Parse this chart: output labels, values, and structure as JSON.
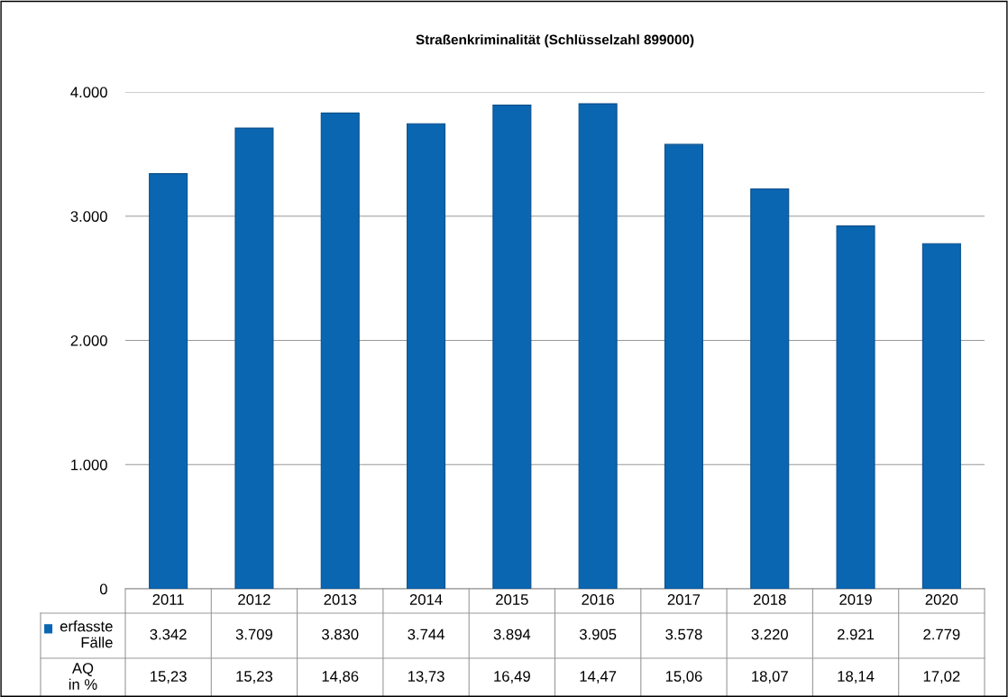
{
  "chart_data": {
    "type": "bar",
    "title": "Straßenkriminalität (Schlüsselzahl 899000)",
    "categories": [
      "2011",
      "2012",
      "2013",
      "2014",
      "2015",
      "2016",
      "2017",
      "2018",
      "2019",
      "2020"
    ],
    "series": [
      {
        "name": "erfasste\nFälle",
        "color": "#0b66b2",
        "values": [
          3342,
          3709,
          3830,
          3744,
          3894,
          3905,
          3578,
          3220,
          2921,
          2779
        ]
      }
    ],
    "value_labels": [
      "3.342",
      "3.709",
      "3.830",
      "3.744",
      "3.894",
      "3.905",
      "3.578",
      "3.220",
      "2.921",
      "2.779"
    ],
    "ylim": [
      0,
      4000
    ],
    "yticks": [
      {
        "value": 0,
        "label": "0"
      },
      {
        "value": 1000,
        "label": "1.000"
      },
      {
        "value": 2000,
        "label": "2.000"
      },
      {
        "value": 3000,
        "label": "3.000"
      },
      {
        "value": 4000,
        "label": "4.000"
      }
    ],
    "grid": "y",
    "legend": "bottom left",
    "annotations": [
      "AQ\nin %",
      "15,23",
      "15,23",
      "14,86",
      "13,73",
      "16,49",
      "14,47",
      "15,06",
      "18,07",
      "18,14",
      "17,02"
    ]
  }
}
